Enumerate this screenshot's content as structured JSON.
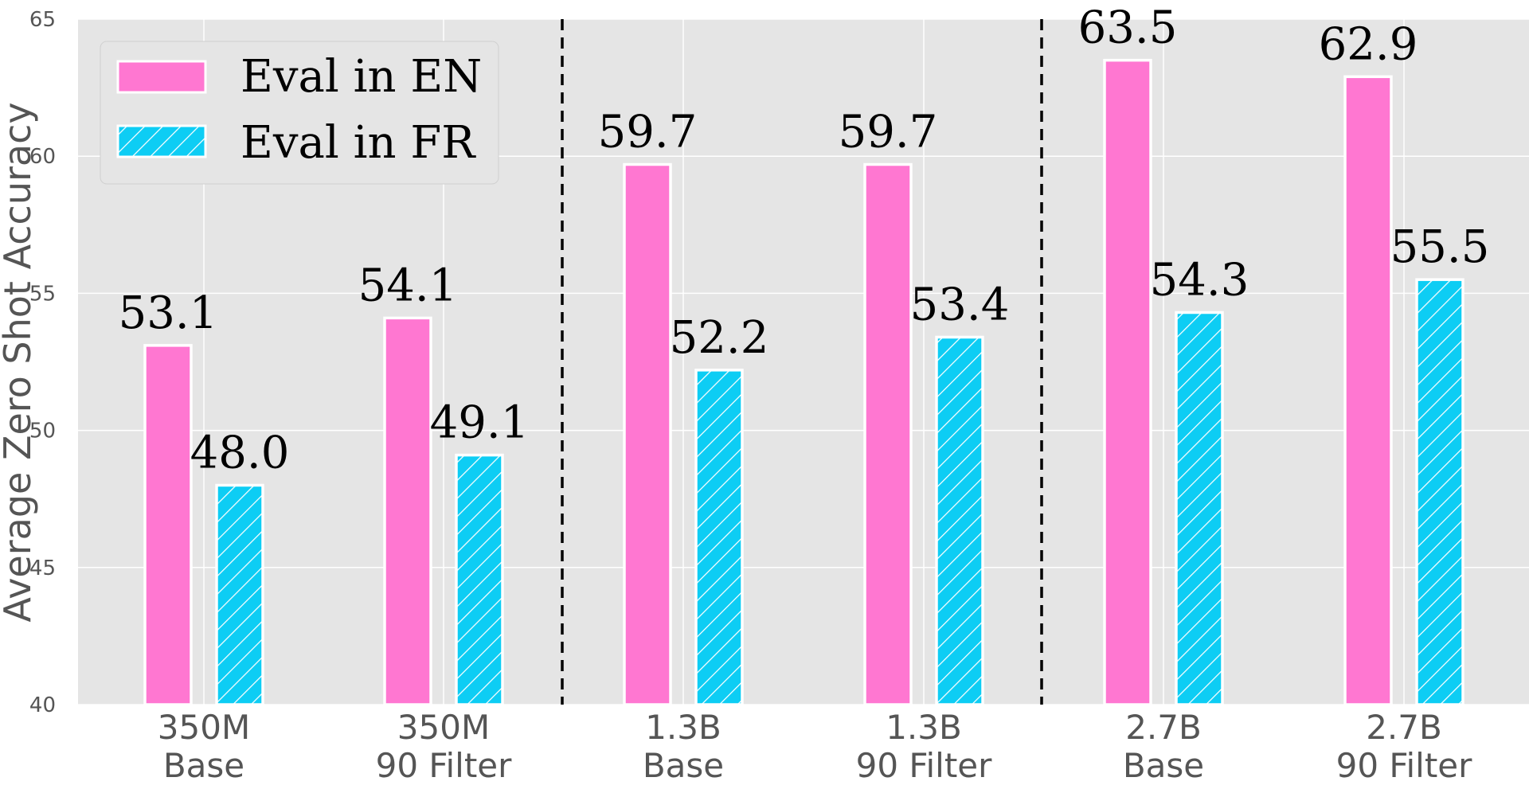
{
  "chart_data": {
    "type": "bar",
    "title": "",
    "xlabel": "",
    "ylabel": "Average Zero Shot Accuracy",
    "ylim": [
      40,
      65
    ],
    "yticks": [
      40,
      45,
      50,
      55,
      60,
      65
    ],
    "grid": true,
    "legend_position": "top-left",
    "categories": [
      {
        "line1": "350M",
        "line2": "Base"
      },
      {
        "line1": "350M",
        "line2": "90 Filter"
      },
      {
        "line1": "1.3B",
        "line2": "Base"
      },
      {
        "line1": "1.3B",
        "line2": "90 Filter"
      },
      {
        "line1": "2.7B",
        "line2": "Base"
      },
      {
        "line1": "2.7B",
        "line2": "90 Filter"
      }
    ],
    "series": [
      {
        "name": "Eval in EN",
        "color": "#ff77d1",
        "pattern": "solid",
        "values": [
          53.1,
          54.1,
          59.7,
          59.7,
          63.5,
          62.9
        ],
        "labels": [
          "53.1",
          "54.1",
          "59.7",
          "59.7",
          "63.5",
          "62.9"
        ]
      },
      {
        "name": "Eval in FR",
        "color": "#0dcdf4",
        "pattern": "hatch",
        "values": [
          48.0,
          49.1,
          52.2,
          53.4,
          54.3,
          55.5
        ],
        "labels": [
          "48.0",
          "49.1",
          "52.2",
          "53.4",
          "54.3",
          "55.5"
        ]
      }
    ],
    "group_separators": "dashed lines between model sizes"
  }
}
